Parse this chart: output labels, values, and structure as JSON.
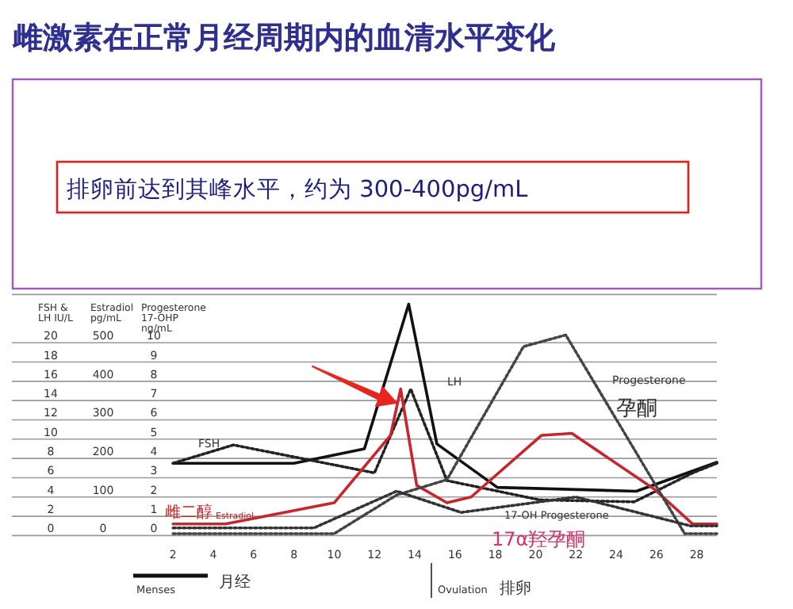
{
  "chart_data": {
    "type": "line",
    "title": "雌激素在正常月经周期内的血清水平变化",
    "ylabel": "Progesterone 17-OHP ng/mL",
    "y2label": "FSH & LH IU/L",
    "y3label": "Estradiol pg/mL",
    "xlim": [
      -6,
      29
    ],
    "xticks": [
      2,
      4,
      6,
      8,
      10,
      12,
      14,
      16,
      18,
      20,
      22,
      24,
      26,
      28
    ],
    "ylim": [
      0,
      12.5
    ],
    "yticks": [
      0,
      1,
      2,
      3,
      4,
      5,
      6,
      7,
      8,
      9,
      10
    ],
    "y2lim": [
      0,
      25
    ],
    "y2ticks": [
      0,
      2,
      4,
      6,
      8,
      10,
      12,
      14,
      16,
      18,
      20
    ],
    "y3lim": [
      0,
      625
    ],
    "y3ticks": [
      0,
      100,
      200,
      300,
      400,
      500
    ],
    "grid": "y",
    "legend": false,
    "marker": "none",
    "series": [
      {
        "name": "LH",
        "color": "#111111",
        "line_style": "solid",
        "axis": "y2",
        "x": [
          2,
          8,
          11.5,
          13.7,
          15.1,
          18.1,
          25,
          29
        ],
        "values": [
          7.5,
          7.5,
          9,
          24,
          9.5,
          5,
          4.6,
          7.6
        ]
      },
      {
        "name": "FSH",
        "color": "#222222",
        "line_style": "dotted",
        "axis": "y2",
        "x": [
          2,
          5,
          12,
          13.8,
          15.6,
          20.2,
          24.9,
          27.8,
          29
        ],
        "values": [
          7.5,
          9.4,
          6.5,
          15.2,
          5.7,
          3.7,
          3.5,
          6.5,
          7.5
        ]
      },
      {
        "name": "Estradiol",
        "color": "#c8262c",
        "line_style": "solid",
        "axis": "y3",
        "x": [
          2,
          4.6,
          10,
          12.8,
          13.3,
          14.1,
          15.6,
          16.8,
          20.3,
          21.8,
          25.9,
          27.8,
          29
        ],
        "values": [
          30,
          30,
          85,
          260,
          380,
          130,
          85,
          100,
          260,
          265,
          120,
          30,
          30
        ]
      },
      {
        "name": "Progesterone",
        "color": "#444444",
        "line_style": "dotted",
        "x": [
          2,
          10,
          13.1,
          15.6,
          19.4,
          21.5,
          27.4,
          29
        ],
        "values": [
          0.1,
          0.1,
          2.1,
          2.9,
          9.8,
          10.4,
          0.1,
          0.1
        ]
      },
      {
        "name": "17-OH Progesterone",
        "color": "#333333",
        "line_style": "dotted",
        "x": [
          2,
          9,
          13.1,
          16.3,
          22,
          27.7,
          29
        ],
        "values": [
          0.4,
          0.4,
          2.3,
          1.2,
          2,
          0.5,
          0.5
        ]
      }
    ],
    "annotations": [
      "排卵前达到其峰水平，约为 300-400pg/mL",
      "雌二醇",
      {
        "text": "孕酮",
        "x": 24,
        "y": 6.25
      },
      "17α羟孕酮",
      "Menses",
      "月经",
      "Ovulation",
      "排卵"
    ]
  }
}
